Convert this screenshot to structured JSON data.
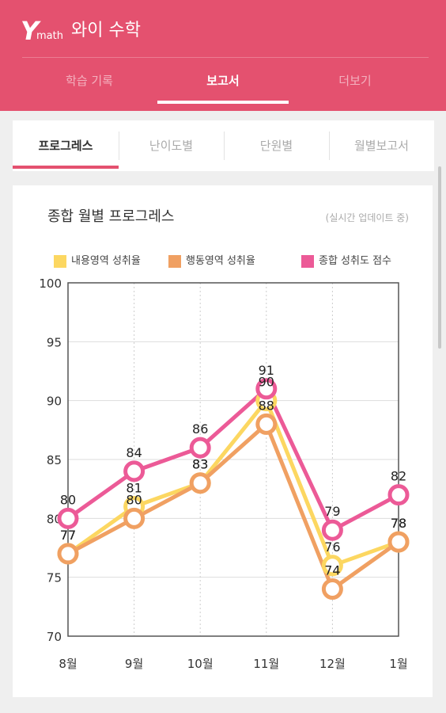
{
  "app": {
    "logo_y": "Y",
    "logo_math": "math",
    "title": "와이 수학",
    "tabs": [
      {
        "label": "학습 기록"
      },
      {
        "label": "보고서"
      },
      {
        "label": "더보기"
      }
    ]
  },
  "subtabs": [
    {
      "label": "프로그레스"
    },
    {
      "label": "난이도별"
    },
    {
      "label": "단원별"
    },
    {
      "label": "월별보고서"
    }
  ],
  "card": {
    "title": "종합 월별 프로그레스",
    "note": "(실시간 업데이트 중)"
  },
  "chart_data": {
    "type": "line",
    "title": "종합 월별 프로그레스",
    "categories": [
      "8월",
      "9월",
      "10월",
      "11월",
      "12월",
      "1월"
    ],
    "ylim": [
      70,
      100
    ],
    "yticks": [
      70,
      75,
      80,
      85,
      90,
      95,
      100
    ],
    "grid": true,
    "legend_position": "top",
    "series": [
      {
        "name": "내용영역 성취율",
        "color": "#fcd761",
        "values": [
          77,
          81,
          83,
          90,
          76,
          78
        ]
      },
      {
        "name": "행동영역 성취율",
        "color": "#f0a062",
        "values": [
          77,
          80,
          83,
          88,
          74,
          78
        ]
      },
      {
        "name": "종합 성취도 점수",
        "color": "#ec5a97",
        "values": [
          80,
          84,
          86,
          91,
          79,
          82
        ]
      }
    ]
  }
}
